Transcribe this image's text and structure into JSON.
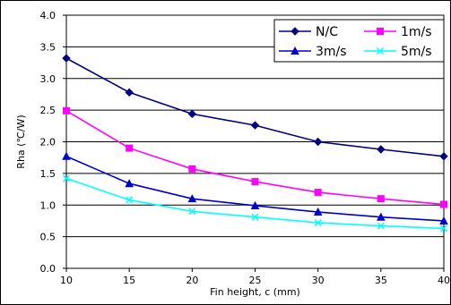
{
  "chart_data": {
    "type": "line",
    "title": "",
    "xlabel": "Fin height, c (mm)",
    "ylabel": "Rha (℃/W)",
    "x": [
      10,
      15,
      20,
      25,
      30,
      35,
      40
    ],
    "xlim": [
      10,
      40
    ],
    "ylim": [
      0.0,
      4.0
    ],
    "x_ticks": [
      "10",
      "15",
      "20",
      "25",
      "30",
      "35",
      "40"
    ],
    "y_ticks": [
      "0.0",
      "0.5",
      "1.0",
      "1.5",
      "2.0",
      "2.5",
      "3.0",
      "3.5",
      "4.0"
    ],
    "grid": "horizontal",
    "legend_position": "top-right",
    "series": [
      {
        "name": "N/C",
        "marker": "diamond",
        "color": "#000080",
        "values": [
          3.32,
          2.78,
          2.44,
          2.26,
          2.0,
          1.88,
          1.77
        ]
      },
      {
        "name": "1m/s",
        "marker": "square",
        "color": "#FF00FF",
        "values": [
          2.49,
          1.9,
          1.57,
          1.37,
          1.2,
          1.1,
          1.01
        ]
      },
      {
        "name": "3m/s",
        "marker": "triangle",
        "color": "#0000CC",
        "values": [
          1.77,
          1.34,
          1.1,
          0.99,
          0.89,
          0.81,
          0.75
        ]
      },
      {
        "name": "5m/s",
        "marker": "x",
        "color": "#00FFFF",
        "values": [
          1.42,
          1.08,
          0.9,
          0.81,
          0.72,
          0.67,
          0.63
        ]
      }
    ]
  }
}
